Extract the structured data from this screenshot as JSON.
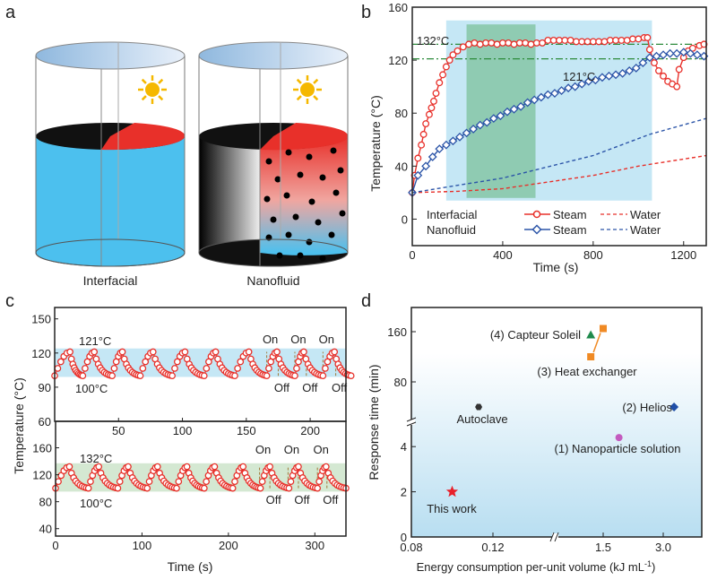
{
  "panel_labels": {
    "a": "a",
    "b": "b",
    "c": "c",
    "d": "d"
  },
  "panel_a": {
    "left_label": "Interfacial",
    "right_label": "Nanofluid",
    "icon": "sun-icon",
    "colors": {
      "water": "#4cc0ee",
      "absorber_black": "#111111",
      "absorber_red": "#e8302a",
      "particles": "#000000"
    }
  },
  "chart_data": [
    {
      "panel": "b",
      "type": "line",
      "xlabel": "Time (s)",
      "ylabel": "Temperature (°C)",
      "xlim": [
        0,
        1300
      ],
      "ylim": [
        -20,
        160
      ],
      "xticks": [
        0,
        400,
        800,
        1200
      ],
      "yticks": [
        0,
        40,
        80,
        120,
        160
      ],
      "legend": {
        "placement": "bottom",
        "row_labels": [
          "Interfacial",
          "Nanofluid"
        ]
      },
      "annotations": [
        {
          "text": "132°C",
          "y": 132
        },
        {
          "text": "121°C",
          "y": 121
        }
      ],
      "reference_lines": [
        132,
        121
      ],
      "shaded_regions": [
        {
          "color": "#c5e7f5",
          "x": [
            150,
            1060
          ],
          "y": [
            14,
            150
          ]
        },
        {
          "color": "#8fcbb2",
          "x": [
            240,
            545
          ],
          "y": [
            16,
            147
          ]
        }
      ],
      "series": [
        {
          "name": "Steam",
          "group": "Interfacial",
          "color": "#e8302a",
          "marker": "circle",
          "style": "solid",
          "x": [
            0,
            10,
            25,
            40,
            50,
            60,
            75,
            85,
            95,
            105,
            120,
            135,
            150,
            165,
            180,
            200,
            225,
            250,
            275,
            300,
            325,
            350,
            375,
            400,
            425,
            450,
            475,
            500,
            525,
            550,
            575,
            600,
            625,
            650,
            675,
            700,
            725,
            750,
            775,
            800,
            825,
            850,
            875,
            900,
            925,
            950,
            975,
            1000,
            1025,
            1040,
            1050,
            1070,
            1090,
            1110,
            1130,
            1150,
            1170,
            1180,
            1200,
            1220,
            1240,
            1270,
            1290
          ],
          "y": [
            20,
            33,
            46,
            56,
            64,
            72,
            79,
            84,
            89,
            95,
            103,
            109,
            115,
            120,
            124,
            127,
            130,
            132,
            133,
            132,
            133,
            133,
            132,
            133,
            133,
            132,
            133,
            133,
            132,
            133,
            133,
            135,
            135,
            135,
            135,
            135,
            134,
            134,
            134,
            134,
            134,
            134,
            135,
            135,
            135,
            135,
            136,
            136,
            137,
            137,
            128,
            118,
            112,
            108,
            104,
            102,
            100,
            113,
            122,
            127,
            129,
            131,
            132
          ]
        },
        {
          "name": "Water",
          "group": "Interfacial",
          "color": "#e8302a",
          "style": "dashed",
          "x": [
            0,
            200,
            400,
            600,
            800,
            1000,
            1300
          ],
          "y": [
            20,
            21,
            23,
            28,
            33,
            40,
            48
          ]
        },
        {
          "name": "Steam",
          "group": "Nanofluid",
          "color": "#2c55a8",
          "marker": "diamond",
          "style": "solid",
          "x": [
            0,
            25,
            60,
            90,
            120,
            150,
            180,
            210,
            240,
            270,
            300,
            330,
            360,
            390,
            420,
            450,
            480,
            510,
            540,
            570,
            600,
            630,
            660,
            690,
            720,
            750,
            780,
            810,
            840,
            870,
            900,
            930,
            960,
            990,
            1020,
            1050,
            1080,
            1110,
            1140,
            1170,
            1200,
            1230,
            1260,
            1290
          ],
          "y": [
            20,
            33,
            40,
            47,
            53,
            56,
            59,
            62,
            65,
            68,
            71,
            73,
            76,
            78,
            81,
            83,
            85,
            88,
            90,
            92,
            94,
            95,
            97,
            99,
            100,
            102,
            104,
            105,
            107,
            108,
            109,
            110,
            112,
            114,
            118,
            122,
            123,
            124,
            125,
            125,
            126,
            125,
            124,
            123
          ]
        },
        {
          "name": "Water",
          "group": "Nanofluid",
          "color": "#2c55a8",
          "style": "dashed",
          "x": [
            0,
            400,
            800,
            1050,
            1300
          ],
          "y": [
            20,
            31,
            48,
            64,
            76
          ]
        }
      ]
    },
    {
      "panel": "c",
      "type": "line",
      "xlabel": "Time (s)",
      "ylabel": "Temperature (°C)",
      "subplots": [
        {
          "position": "top",
          "xlim": [
            0,
            228
          ],
          "ylim": [
            60,
            160
          ],
          "xticks": [
            50,
            100,
            150,
            200
          ],
          "yticks": [
            60,
            90,
            120,
            150
          ],
          "band": {
            "color": "#c5e7f5",
            "y": [
              99,
              124
            ]
          },
          "annotations": [
            {
              "text": "121°C"
            },
            {
              "text": "100°C"
            }
          ],
          "min": 100,
          "max": 121,
          "troughs": [
            0,
            22,
            45,
            67,
            92,
            117,
            141,
            166,
            188,
            210,
            232
          ],
          "peaks": [
            12,
            31,
            53,
            77,
            102,
            126,
            152,
            174,
            195,
            219
          ],
          "on": [
            166,
            188,
            210
          ],
          "off": [
            175,
            197,
            220
          ]
        },
        {
          "position": "bottom",
          "xlim": [
            0,
            336
          ],
          "ylim": [
            33,
            166
          ],
          "xticks": [
            0,
            100,
            200,
            300
          ],
          "yticks": [
            40,
            80,
            120,
            160
          ],
          "band": {
            "color": "#d4e8d2",
            "y": [
              95,
              137
            ]
          },
          "annotations": [
            {
              "text": "132°C"
            },
            {
              "text": "100°C"
            }
          ],
          "min": 100,
          "max": 132,
          "troughs": [
            0,
            38,
            72,
            106,
            140,
            172,
            205,
            237,
            270,
            303,
            336
          ],
          "peaks": [
            16,
            50,
            84,
            118,
            152,
            184,
            217,
            248,
            281,
            313
          ],
          "on": [
            236,
            269,
            303
          ],
          "off": [
            248,
            281,
            314
          ]
        }
      ],
      "on_label": "On",
      "off_label": "Off",
      "color": "#e8302a"
    },
    {
      "panel": "d",
      "type": "scatter",
      "xlabel": "Energy consumption per-unit volume (kJ mL",
      "xlabel_sup": "-1",
      "xlabel_end": ")",
      "ylabel": "Response time (min)",
      "xticks": [
        "0.08",
        "0.12",
        "1.5",
        "3.0"
      ],
      "yticks": [
        "0",
        "2",
        "4",
        "80",
        "160"
      ],
      "axis_breaks": {
        "x": true,
        "y": true
      },
      "points": [
        {
          "label": "This work",
          "x": 0.1,
          "y": 2,
          "marker": "star",
          "color": "#e8202a"
        },
        {
          "label": "Autoclave",
          "x": 0.113,
          "y": 40,
          "marker": "hexagon",
          "color": "#333333"
        },
        {
          "label": "(1) Nanoparticle solution",
          "x": 1.8,
          "y": 4.4,
          "marker": "circle",
          "color": "#c35bbf"
        },
        {
          "label": "(2) Helios",
          "x": 3.4,
          "y": 40,
          "marker": "diamond",
          "color": "#1f4fa8"
        },
        {
          "label": "(4) Capteur Soleil",
          "x": 1.3,
          "y": 155,
          "marker": "triangle",
          "color": "#1f8a4c"
        },
        {
          "label": "(3) Heat exchanger",
          "x": [
            1.3,
            1.5
          ],
          "y": [
            120,
            165
          ],
          "marker": "square",
          "color": "#f08a24"
        }
      ]
    }
  ]
}
